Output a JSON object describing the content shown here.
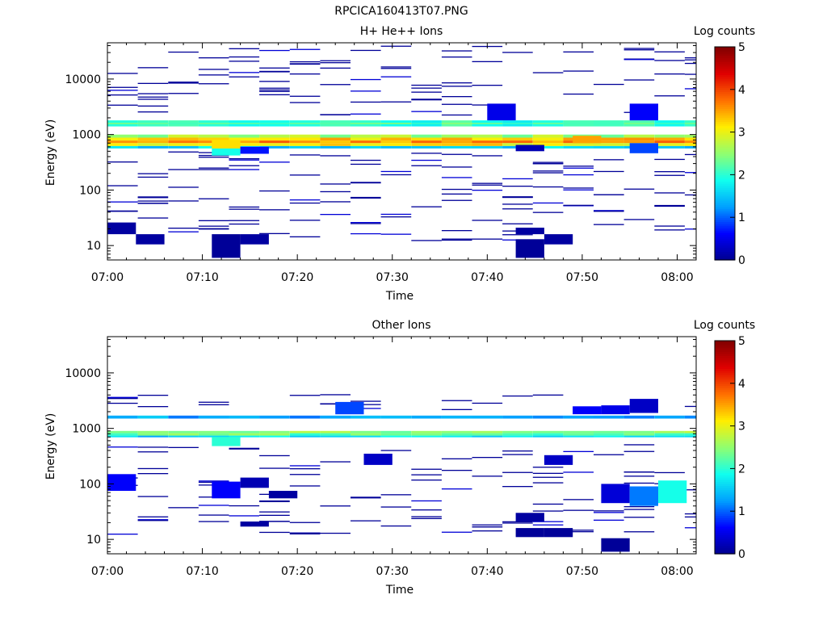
{
  "figure_title": "RPCICA160413T07.PNG",
  "colors": {
    "colormap": [
      "#00008f",
      "#0000ff",
      "#00a0ff",
      "#10ffee",
      "#90ff70",
      "#ffee00",
      "#ff7000",
      "#e00000",
      "#800000"
    ],
    "axis": "#000000"
  },
  "chart_data": [
    {
      "type": "heatmap",
      "title": "H+ He++ Ions",
      "xlabel": "Time",
      "ylabel": "Energy (eV)",
      "x_range": [
        "07:00",
        "08:02"
      ],
      "x_ticks": [
        "07:00",
        "07:10",
        "07:20",
        "07:30",
        "07:40",
        "07:50",
        "08:00"
      ],
      "y_scale": "log",
      "y_range": [
        5.5,
        45000
      ],
      "y_ticks": [
        "10",
        "100",
        "1000",
        "10000"
      ],
      "colorbar": {
        "label": "Log counts",
        "range": [
          0,
          5
        ],
        "ticks": [
          "0",
          "1",
          "2",
          "3",
          "4",
          "5"
        ]
      },
      "band_intensity_log_counts": [
        {
          "energy_ev": [
            1400,
            1800
          ],
          "value": 2.0
        },
        {
          "energy_ev": [
            1550,
            1620
          ],
          "value": 2.4
        },
        {
          "energy_ev": [
            880,
            1000
          ],
          "value": 2.6
        },
        {
          "energy_ev": [
            780,
            880
          ],
          "value": 3.3
        },
        {
          "energy_ev": [
            700,
            780
          ],
          "value": 3.6
        },
        {
          "energy_ev": [
            620,
            700
          ],
          "value": 3.1
        },
        {
          "energy_ev": [
            560,
            620
          ],
          "value": 1.6
        }
      ],
      "sparse_counts_log": 0.05,
      "patches": [
        {
          "time": [
            "07:00",
            "07:03"
          ],
          "energy_ev": [
            16,
            26
          ],
          "value": 0.1
        },
        {
          "time": [
            "07:03",
            "07:06"
          ],
          "energy_ev": [
            10.5,
            16
          ],
          "value": 0.1
        },
        {
          "time": [
            "07:11",
            "07:14"
          ],
          "energy_ev": [
            6,
            16
          ],
          "value": 0.05
        },
        {
          "time": [
            "07:14",
            "07:17"
          ],
          "energy_ev": [
            10.5,
            16
          ],
          "value": 0.1
        },
        {
          "time": [
            "07:43",
            "07:46"
          ],
          "energy_ev": [
            6,
            13
          ],
          "value": 0.05
        },
        {
          "time": [
            "07:43",
            "07:46"
          ],
          "energy_ev": [
            16,
            21
          ],
          "value": 0.1
        },
        {
          "time": [
            "07:46",
            "07:49"
          ],
          "energy_ev": [
            10.5,
            16
          ],
          "value": 0.1
        },
        {
          "time": [
            "07:11",
            "07:14"
          ],
          "energy_ev": [
            420,
            560
          ],
          "value": 1.9
        },
        {
          "time": [
            "07:11",
            "07:14"
          ],
          "energy_ev": [
            560,
            800
          ],
          "value": 3.2
        },
        {
          "time": [
            "07:14",
            "07:17"
          ],
          "energy_ev": [
            450,
            600
          ],
          "value": 0.7
        },
        {
          "time": [
            "07:40",
            "07:43"
          ],
          "energy_ev": [
            1800,
            3600
          ],
          "value": 0.5
        },
        {
          "time": [
            "07:43",
            "07:46"
          ],
          "energy_ev": [
            500,
            650
          ],
          "value": 0.2
        },
        {
          "time": [
            "07:49",
            "07:52"
          ],
          "energy_ev": [
            700,
            950
          ],
          "value": 3.5
        },
        {
          "time": [
            "07:55",
            "07:58"
          ],
          "energy_ev": [
            460,
            700
          ],
          "value": 0.9
        },
        {
          "time": [
            "07:55",
            "07:58"
          ],
          "energy_ev": [
            1800,
            3600
          ],
          "value": 0.6
        }
      ]
    },
    {
      "type": "heatmap",
      "title": "Other Ions",
      "xlabel": "Time",
      "ylabel": "Energy (eV)",
      "x_range": [
        "07:00",
        "08:02"
      ],
      "x_ticks": [
        "07:00",
        "07:10",
        "07:20",
        "07:30",
        "07:40",
        "07:50",
        "08:00"
      ],
      "y_scale": "log",
      "y_range": [
        5.5,
        45000
      ],
      "y_ticks": [
        "10",
        "100",
        "1000",
        "10000"
      ],
      "colorbar": {
        "label": "Log counts",
        "range": [
          0,
          5
        ],
        "ticks": [
          "0",
          "1",
          "2",
          "3",
          "4",
          "5"
        ]
      },
      "band_intensity_log_counts": [
        {
          "energy_ev": [
            1500,
            1700
          ],
          "value": 1.3
        },
        {
          "energy_ev": [
            820,
            900
          ],
          "value": 2.5
        },
        {
          "energy_ev": [
            740,
            820
          ],
          "value": 2.3
        },
        {
          "energy_ev": [
            690,
            740
          ],
          "value": 1.6
        }
      ],
      "sparse_counts_log": 0.05,
      "patches": [
        {
          "time": [
            "07:00",
            "07:03"
          ],
          "energy_ev": [
            75,
            150
          ],
          "value": 0.6
        },
        {
          "time": [
            "07:11",
            "07:14"
          ],
          "energy_ev": [
            480,
            700
          ],
          "value": 2.0
        },
        {
          "time": [
            "07:11",
            "07:14"
          ],
          "energy_ev": [
            55,
            110
          ],
          "value": 0.6
        },
        {
          "time": [
            "07:14",
            "07:17"
          ],
          "energy_ev": [
            85,
            130
          ],
          "value": 0.2
        },
        {
          "time": [
            "07:14",
            "07:17"
          ],
          "energy_ev": [
            17,
            21
          ],
          "value": 0.1
        },
        {
          "time": [
            "07:17",
            "07:20"
          ],
          "energy_ev": [
            55,
            75
          ],
          "value": 0.1
        },
        {
          "time": [
            "07:24",
            "07:27"
          ],
          "energy_ev": [
            1800,
            3000
          ],
          "value": 0.9
        },
        {
          "time": [
            "07:27",
            "07:30"
          ],
          "energy_ev": [
            220,
            350
          ],
          "value": 0.3
        },
        {
          "time": [
            "07:43",
            "07:46"
          ],
          "energy_ev": [
            11,
            16
          ],
          "value": 0.05
        },
        {
          "time": [
            "07:43",
            "07:46"
          ],
          "energy_ev": [
            21,
            30
          ],
          "value": 0.1
        },
        {
          "time": [
            "07:46",
            "07:49"
          ],
          "energy_ev": [
            11,
            16
          ],
          "value": 0.05
        },
        {
          "time": [
            "07:46",
            "07:49"
          ],
          "energy_ev": [
            220,
            330
          ],
          "value": 0.3
        },
        {
          "time": [
            "07:49",
            "07:52"
          ],
          "energy_ev": [
            1800,
            2500
          ],
          "value": 0.6
        },
        {
          "time": [
            "07:52",
            "07:55"
          ],
          "energy_ev": [
            1800,
            2600
          ],
          "value": 0.5
        },
        {
          "time": [
            "07:52",
            "07:55"
          ],
          "energy_ev": [
            45,
            100
          ],
          "value": 0.4
        },
        {
          "time": [
            "07:52",
            "07:55"
          ],
          "energy_ev": [
            6,
            10.5
          ],
          "value": 0.05
        },
        {
          "time": [
            "07:55",
            "07:58"
          ],
          "energy_ev": [
            1900,
            3400
          ],
          "value": 0.3
        },
        {
          "time": [
            "07:55",
            "07:58"
          ],
          "energy_ev": [
            40,
            90
          ],
          "value": 1.1
        },
        {
          "time": [
            "07:58",
            "08:01"
          ],
          "energy_ev": [
            45,
            115
          ],
          "value": 1.9
        }
      ]
    }
  ]
}
